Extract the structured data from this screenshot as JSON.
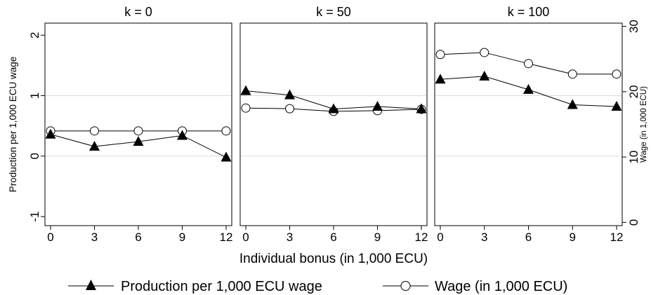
{
  "chart_data": {
    "type": "line",
    "x": [
      0,
      3,
      6,
      9,
      12
    ],
    "xticks": [
      "0",
      "3",
      "6",
      "9",
      "12"
    ],
    "xlabel": "Individual bonus (in 1,000 ECU)",
    "ylabel": "Production per 1,000 ECU wage",
    "y2label": "Wage (in 1,000 ECU)",
    "ylim": [
      -1.15,
      2.2
    ],
    "y2lim": [
      -0.5,
      30.5
    ],
    "yticks": [
      "-1",
      "0",
      "1",
      "2"
    ],
    "y2ticks": [
      "0",
      "10",
      "20",
      "30"
    ],
    "grid": true,
    "legend_position": "bottom",
    "legend": [
      "Production per 1,000 ECU wage",
      "Wage (in 1,000 ECU)"
    ],
    "panels": [
      {
        "title": "k = 0",
        "production": [
          0.36,
          0.16,
          0.24,
          0.34,
          -0.02
        ],
        "wage": [
          14.0,
          14.0,
          14.0,
          14.0,
          14.0
        ]
      },
      {
        "title": "k = 50",
        "production": [
          1.08,
          1.01,
          0.78,
          0.82,
          0.78
        ],
        "wage": [
          17.5,
          17.4,
          17.0,
          17.1,
          17.3
        ]
      },
      {
        "title": "k = 100",
        "production": [
          1.27,
          1.32,
          1.1,
          0.85,
          0.82
        ],
        "wage": [
          25.7,
          26.0,
          24.3,
          22.7,
          22.7
        ]
      }
    ]
  }
}
